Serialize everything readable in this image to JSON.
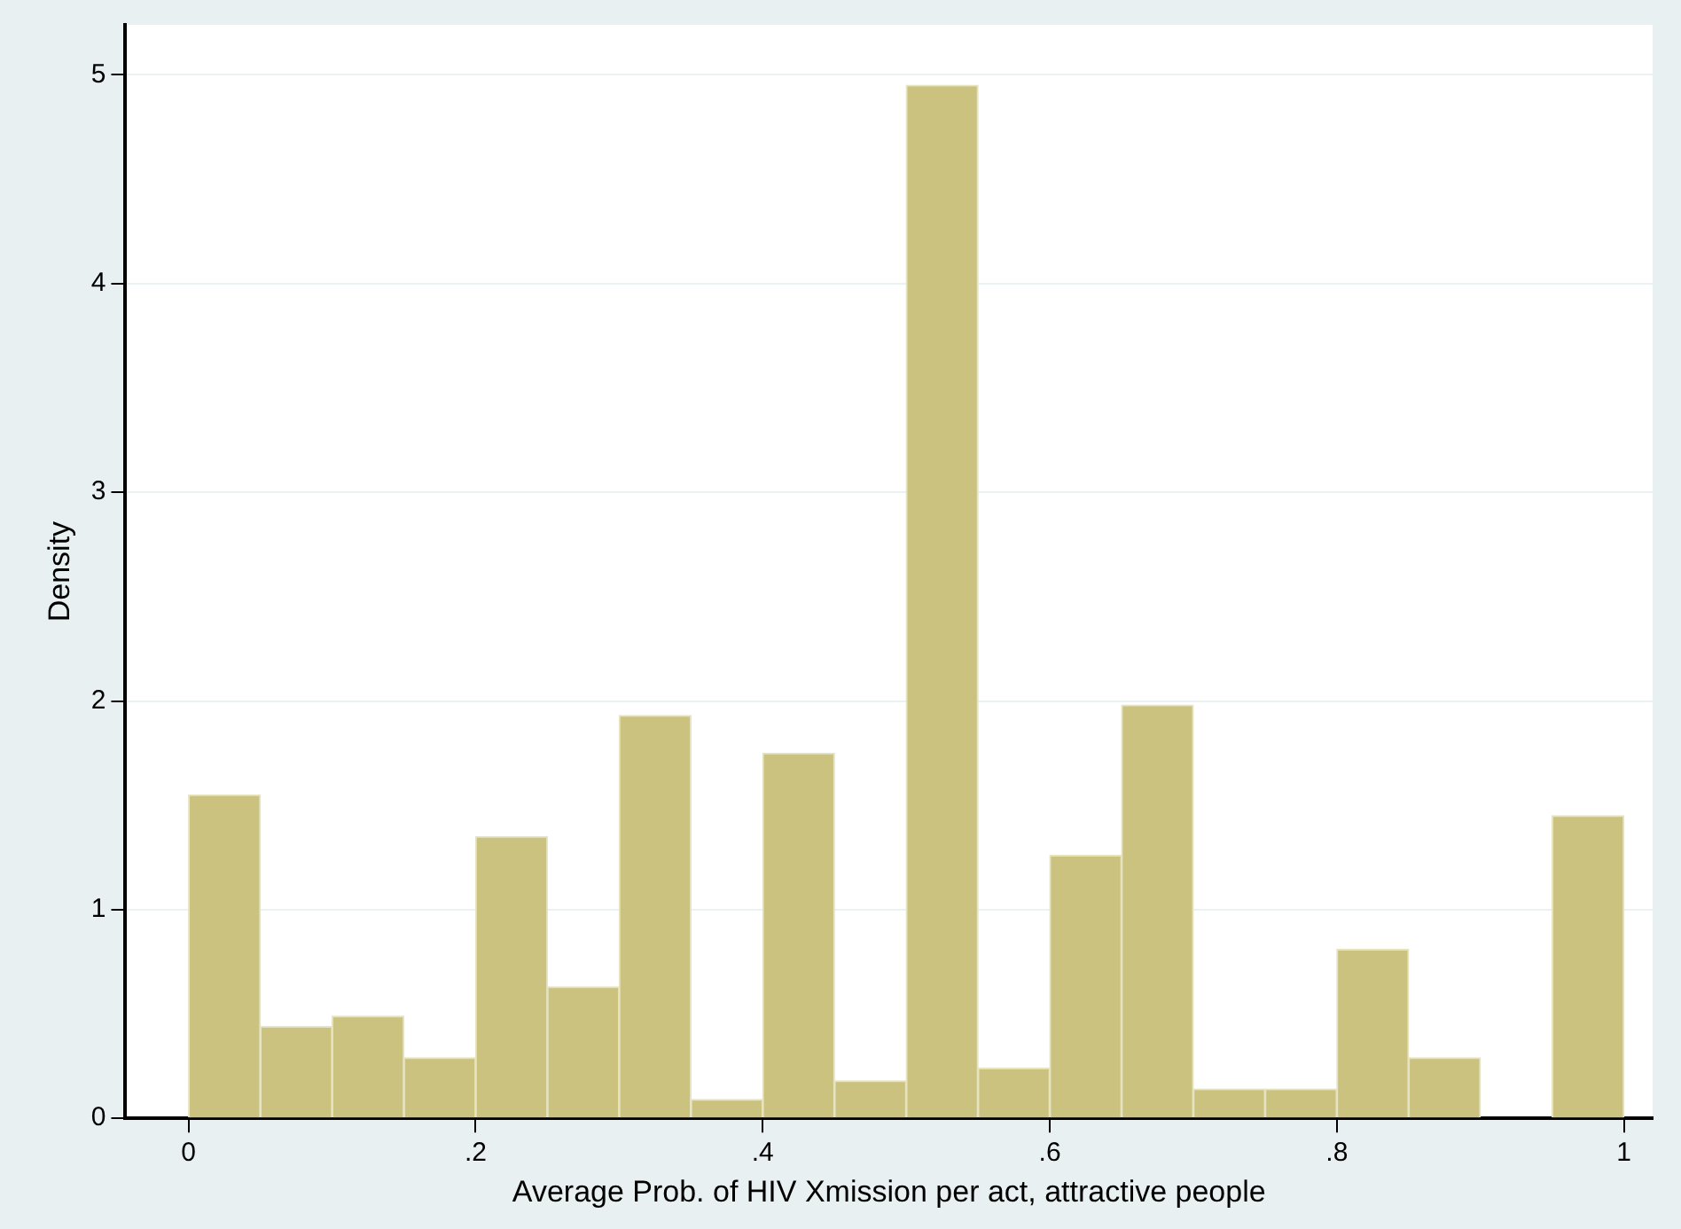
{
  "chart_data": {
    "type": "histogram",
    "bins": [
      0,
      0.05,
      0.1,
      0.15,
      0.2,
      0.25,
      0.3,
      0.35,
      0.4,
      0.45,
      0.5,
      0.55,
      0.6,
      0.65,
      0.7,
      0.75,
      0.8,
      0.85,
      0.9,
      0.95,
      1
    ],
    "values": [
      1.55,
      0.44,
      0.49,
      0.29,
      1.35,
      0.63,
      1.93,
      0.09,
      1.75,
      0.18,
      4.95,
      0.24,
      1.26,
      1.98,
      0.14,
      0.14,
      0.81,
      0.29,
      0,
      1.45
    ],
    "color": "#cbc27f",
    "xlabel": "Average Prob. of HIV Xmission per act, attractive people",
    "ylabel": "Density",
    "xlim": [
      -0.044,
      1.02
    ],
    "xticks": [
      {
        "value": 0,
        "label": "0"
      },
      {
        "value": 0.2,
        "label": ".2"
      },
      {
        "value": 0.4,
        "label": ".4"
      },
      {
        "value": 0.6,
        "label": ".6"
      },
      {
        "value": 0.8,
        "label": ".8"
      },
      {
        "value": 1,
        "label": "1"
      }
    ],
    "ylim": [
      0,
      5.24
    ],
    "yticks": [
      0,
      1,
      2,
      3,
      4,
      5
    ],
    "grid": "y",
    "legend": false
  }
}
